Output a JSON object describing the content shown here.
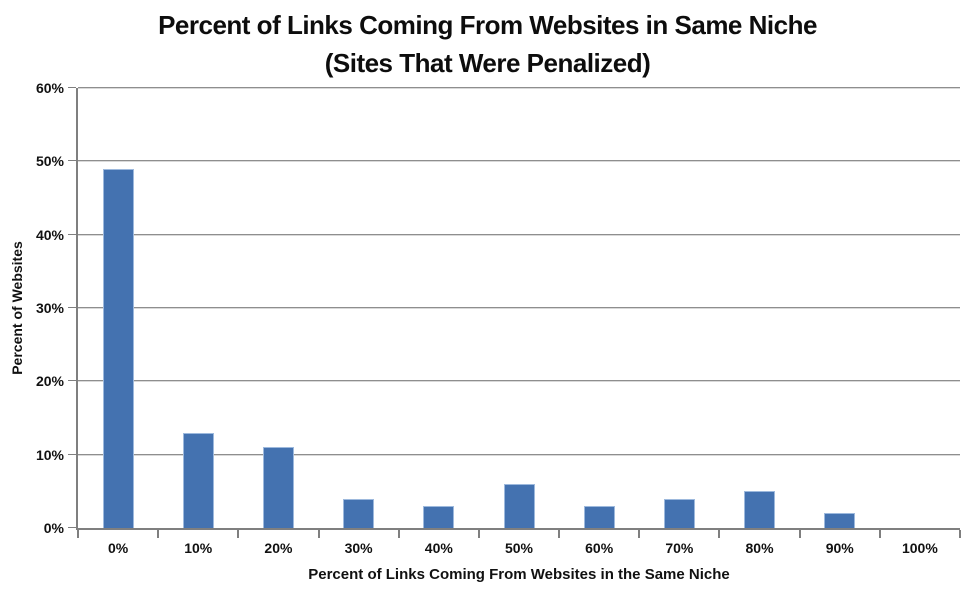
{
  "title": {
    "line1": "Percent of Links Coming From Websites in Same Niche",
    "line2": "(Sites That Were Penalized)"
  },
  "chart_data": {
    "type": "bar",
    "title": "Percent of Links Coming From Websites in Same Niche (Sites That Were Penalized)",
    "categories": [
      "0%",
      "10%",
      "20%",
      "30%",
      "40%",
      "50%",
      "60%",
      "70%",
      "80%",
      "90%",
      "100%"
    ],
    "values": [
      49,
      13,
      11,
      4,
      3,
      6,
      3,
      4,
      5,
      2,
      0
    ],
    "xlabel": "Percent of Links Coming From Websites in the Same Niche",
    "ylabel": "Percent of Websites",
    "ylim": [
      0,
      60
    ],
    "ytick_step": 10,
    "ytick_labels": [
      "0%",
      "10%",
      "20%",
      "30%",
      "40%",
      "50%",
      "60%"
    ],
    "grid": true,
    "legend": false,
    "colors": {
      "bar_fill": "#4472b0",
      "bar_edge": "#9db9dd",
      "axis": "#7f7f7f",
      "gridline": "#8e8e8e",
      "text": "#111111"
    }
  }
}
